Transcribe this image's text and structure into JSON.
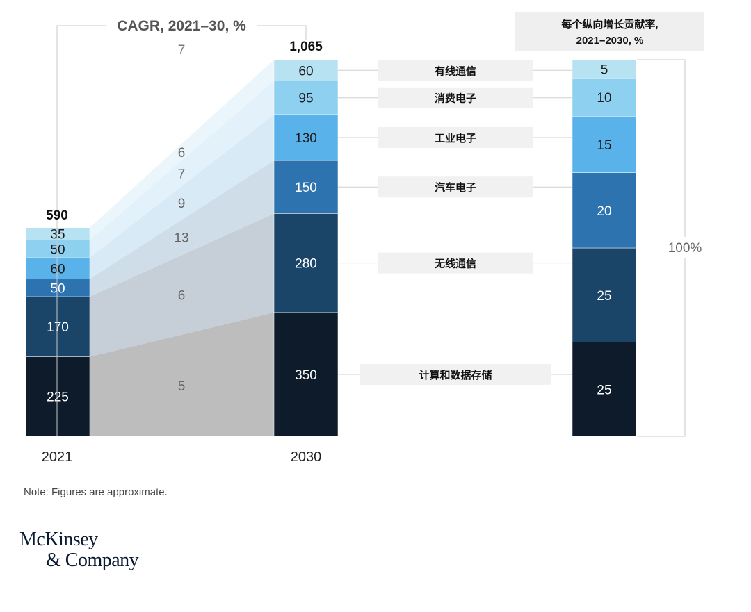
{
  "chart_data": {
    "type": "bar",
    "title": "CAGR, 2021–30, %",
    "categories": [
      "2021",
      "2030"
    ],
    "totals": [
      "590",
      "1,065"
    ],
    "segments": [
      {
        "name": "计算和数据存储",
        "v2021": 225,
        "v2030": 350,
        "cagr": 5,
        "contribution": 25,
        "color": "#0d1b2a"
      },
      {
        "name": "无线通信",
        "v2021": 170,
        "v2030": 280,
        "cagr": 6,
        "contribution": 25,
        "color": "#1b4568"
      },
      {
        "name": "汽车电子",
        "v2021": 50,
        "v2030": 150,
        "cagr": 13,
        "contribution": 20,
        "color": "#2d73b0"
      },
      {
        "name": "工业电子",
        "v2021": 60,
        "v2030": 130,
        "cagr": 9,
        "contribution": 15,
        "color": "#5ab2ea"
      },
      {
        "name": "消费电子",
        "v2021": 50,
        "v2030": 95,
        "cagr": 7,
        "contribution": 10,
        "color": "#8dd0ef"
      },
      {
        "name": "有线通信",
        "v2021": 35,
        "v2030": 60,
        "cagr": 6,
        "contribution": 5,
        "color": "#b6e2f2"
      }
    ],
    "total_cagr": 7,
    "contribution_title_line1": "每个纵向增长贡献率,",
    "contribution_title_line2": "2021–2030, %",
    "contribution_total": "100%"
  },
  "note": "Note: Figures are approximate.",
  "logo": {
    "line1": "McKinsey",
    "line2": "& Company"
  }
}
